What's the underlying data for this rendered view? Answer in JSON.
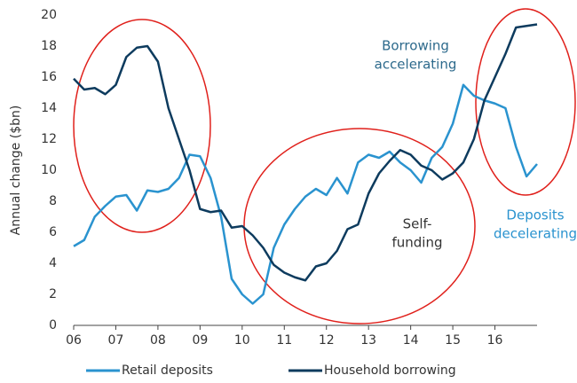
{
  "chart_data": {
    "type": "line",
    "ylabel": "Annual change ($bn)",
    "x": [
      2006.0,
      2006.25,
      2006.5,
      2006.75,
      2007.0,
      2007.25,
      2007.5,
      2007.75,
      2008.0,
      2008.25,
      2008.5,
      2008.75,
      2009.0,
      2009.25,
      2009.5,
      2009.75,
      2010.0,
      2010.25,
      2010.5,
      2010.75,
      2011.0,
      2011.25,
      2011.5,
      2011.75,
      2012.0,
      2012.25,
      2012.5,
      2012.75,
      2013.0,
      2013.25,
      2013.5,
      2013.75,
      2014.0,
      2014.25,
      2014.5,
      2014.75,
      2015.0,
      2015.25,
      2015.5,
      2015.75,
      2016.0,
      2016.25,
      2016.5,
      2016.75,
      2017.0
    ],
    "series": [
      {
        "name": "Retail deposits",
        "color": "#2a93cf",
        "values": [
          5.1,
          5.5,
          7.0,
          7.7,
          8.3,
          8.4,
          7.4,
          8.7,
          8.6,
          8.8,
          9.5,
          11.0,
          10.9,
          9.5,
          7.0,
          3.0,
          2.0,
          1.4,
          2.0,
          5.0,
          6.5,
          7.5,
          8.3,
          8.8,
          8.4,
          9.5,
          8.5,
          10.5,
          11.0,
          10.8,
          11.2,
          10.5,
          10.0,
          9.2,
          10.8,
          11.5,
          13.0,
          15.5,
          14.8,
          14.5,
          14.3,
          14.0,
          11.5,
          9.6,
          10.4
        ]
      },
      {
        "name": "Household borrowing",
        "color": "#0d3b5e",
        "values": [
          15.9,
          15.2,
          15.3,
          14.9,
          15.5,
          17.3,
          17.9,
          18.0,
          17.0,
          14.0,
          12.0,
          10.0,
          7.5,
          7.3,
          7.4,
          6.3,
          6.4,
          5.8,
          5.0,
          3.9,
          3.4,
          3.1,
          2.9,
          3.8,
          4.0,
          4.8,
          6.2,
          6.5,
          8.5,
          9.8,
          10.6,
          11.3,
          11.0,
          10.3,
          10.0,
          9.4,
          9.8,
          10.5,
          12.0,
          14.5,
          16.0,
          17.5,
          19.2,
          19.3,
          19.4
        ]
      }
    ],
    "xlim": [
      2006,
      2017
    ],
    "xticks": [
      {
        "value": 2006,
        "label": "06"
      },
      {
        "value": 2007,
        "label": "07"
      },
      {
        "value": 2008,
        "label": "08"
      },
      {
        "value": 2009,
        "label": "09"
      },
      {
        "value": 2010,
        "label": "10"
      },
      {
        "value": 2011,
        "label": "11"
      },
      {
        "value": 2012,
        "label": "12"
      },
      {
        "value": 2013,
        "label": "13"
      },
      {
        "value": 2014,
        "label": "14"
      },
      {
        "value": 2015,
        "label": "15"
      },
      {
        "value": 2016,
        "label": "16"
      }
    ],
    "ylim": [
      0,
      20
    ],
    "yticks": [
      0,
      2,
      4,
      6,
      8,
      10,
      12,
      14,
      16,
      18,
      20
    ],
    "grid": false,
    "legend": "bottom",
    "annotations": [
      {
        "lines": [
          "Borrowing",
          "accelerating"
        ],
        "color": "#2d6a8c"
      },
      {
        "lines": [
          "Self-",
          "funding"
        ],
        "color": "#333333"
      },
      {
        "lines": [
          "Deposits",
          "decelerating"
        ],
        "color": "#2a93cf"
      }
    ]
  }
}
